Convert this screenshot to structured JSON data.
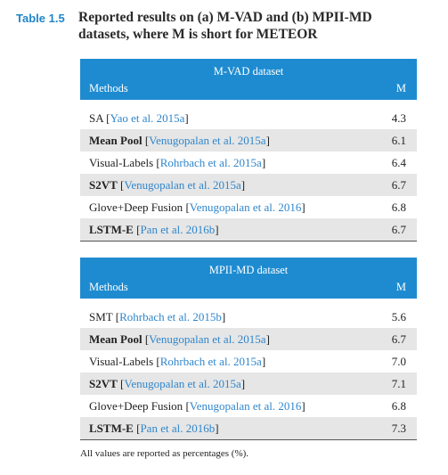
{
  "caption": {
    "label": "Table 1.5",
    "title_lines": [
      "Reported results on (a) M-VAD and (b) MPII-MD",
      "datasets, where M is short for METEOR"
    ]
  },
  "tables": [
    {
      "dataset": "M-VAD dataset",
      "columns": [
        "Methods",
        "M"
      ],
      "rows": [
        {
          "method": "SA",
          "citation": "Yao et al. 2015a",
          "value": "4.3"
        },
        {
          "method": "Mean Pool",
          "citation": "Venugopalan et al. 2015a",
          "value": "6.1"
        },
        {
          "method": "Visual-Labels",
          "citation": "Rohrbach et al. 2015a",
          "value": "6.4"
        },
        {
          "method": "S2VT",
          "citation": "Venugopalan et al. 2015a",
          "value": "6.7"
        },
        {
          "method": "Glove+Deep Fusion",
          "citation": "Venugopalan et al. 2016",
          "value": "6.8"
        },
        {
          "method": "LSTM-E",
          "citation": "Pan et al. 2016b",
          "value": "6.7"
        }
      ]
    },
    {
      "dataset": "MPII-MD dataset",
      "columns": [
        "Methods",
        "M"
      ],
      "rows": [
        {
          "method": "SMT",
          "citation": "Rohrbach et al. 2015b",
          "value": "5.6"
        },
        {
          "method": "Mean Pool",
          "citation": "Venugopalan et al. 2015a",
          "value": "6.7"
        },
        {
          "method": "Visual-Labels",
          "citation": "Rohrbach et al. 2015a",
          "value": "7.0"
        },
        {
          "method": "S2VT",
          "citation": "Venugopalan et al. 2015a",
          "value": "7.1"
        },
        {
          "method": "Glove+Deep Fusion",
          "citation": "Venugopalan et al. 2016",
          "value": "6.8"
        },
        {
          "method": "LSTM-E",
          "citation": "Pan et al. 2016b",
          "value": "7.3"
        }
      ]
    }
  ],
  "note": "All values are reported as percentages (%)."
}
